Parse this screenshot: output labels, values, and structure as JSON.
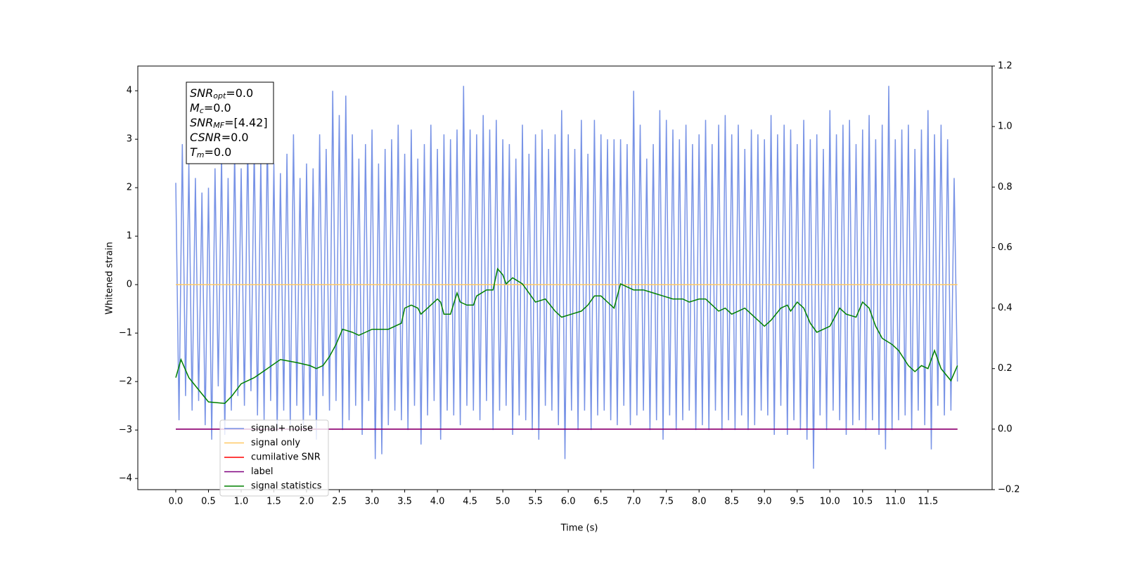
{
  "chart_data": {
    "type": "line",
    "xlabel": "Time (s)",
    "ylabel": "Whitened strain",
    "xlim": [
      -0.58,
      12.48
    ],
    "ylim": [
      -4.23,
      4.51
    ],
    "y2lim": [
      -0.2,
      1.2
    ],
    "xticks": [
      {
        "value": 0,
        "label": "0.0"
      },
      0.5,
      {
        "value": 1,
        "label": "1.0"
      },
      1.5,
      {
        "value": 2,
        "label": "2.0"
      },
      2.5,
      {
        "value": 3,
        "label": "3.0"
      },
      3.5,
      {
        "value": 4,
        "label": "4.0"
      },
      4.5,
      {
        "value": 5,
        "label": "5.0"
      },
      5.5,
      {
        "value": 6,
        "label": "6.0"
      },
      6.5,
      {
        "value": 7,
        "label": "7.0"
      },
      7.5,
      {
        "value": 8,
        "label": "8.0"
      },
      8.5,
      {
        "value": 9,
        "label": "9.0"
      },
      9.5,
      {
        "value": 10,
        "label": "10.0"
      },
      10.5,
      {
        "value": 11,
        "label": "11.0"
      },
      11.5
    ],
    "yticks": [
      {
        "value": -4,
        "label": "−4"
      },
      {
        "value": -3,
        "label": "−3"
      },
      {
        "value": -2,
        "label": "−2"
      },
      {
        "value": -1,
        "label": "−1"
      },
      0,
      1,
      2,
      3,
      4
    ],
    "y2ticks": [
      {
        "value": -0.2,
        "label": "−0.2"
      },
      {
        "value": 0,
        "label": "0.0"
      },
      {
        "value": 0.2,
        "label": "0.2"
      },
      {
        "value": 0.4,
        "label": "0.4"
      },
      {
        "value": 0.6,
        "label": "0.6"
      },
      {
        "value": 0.8,
        "label": "0.8"
      },
      {
        "value": 1,
        "label": "1.0"
      },
      {
        "value": 1.2,
        "label": "1.2"
      }
    ],
    "annotation": [
      {
        "symbol": "SNR",
        "subscript": "opt",
        "text": "=0.0"
      },
      {
        "symbol": "M",
        "subscript": "c",
        "text": "=0.0"
      },
      {
        "symbol": "SNR",
        "subscript": "MF",
        "text": "=[4.42]"
      },
      {
        "symbol": "CSNR",
        "subscript": null,
        "text": "=0.0"
      },
      {
        "symbol": "T",
        "subscript": "m",
        "text": "=0.0"
      }
    ],
    "series": [
      {
        "name": "signal+ noise",
        "color": "#7893e6",
        "axis": "y",
        "x": [
          0,
          0.05,
          0.1,
          0.15,
          0.2,
          0.25,
          0.3,
          0.35,
          0.4,
          0.45,
          0.5,
          0.55,
          0.6,
          0.65,
          0.7,
          0.75,
          0.8,
          0.85,
          0.9,
          0.95,
          1,
          1.05,
          1.1,
          1.15,
          1.2,
          1.25,
          1.3,
          1.35,
          1.4,
          1.45,
          1.5,
          1.55,
          1.6,
          1.65,
          1.7,
          1.75,
          1.8,
          1.85,
          1.9,
          1.95,
          2,
          2.05,
          2.1,
          2.15,
          2.2,
          2.25,
          2.3,
          2.35,
          2.4,
          2.45,
          2.5,
          2.55,
          2.6,
          2.65,
          2.7,
          2.75,
          2.8,
          2.85,
          2.9,
          2.95,
          3,
          3.05,
          3.1,
          3.15,
          3.2,
          3.25,
          3.3,
          3.35,
          3.4,
          3.45,
          3.5,
          3.55,
          3.6,
          3.65,
          3.7,
          3.75,
          3.8,
          3.85,
          3.9,
          3.95,
          4,
          4.05,
          4.1,
          4.15,
          4.2,
          4.25,
          4.3,
          4.35,
          4.4,
          4.45,
          4.5,
          4.55,
          4.6,
          4.65,
          4.7,
          4.75,
          4.8,
          4.85,
          4.9,
          4.95,
          5,
          5.05,
          5.1,
          5.15,
          5.2,
          5.25,
          5.3,
          5.35,
          5.4,
          5.45,
          5.5,
          5.55,
          5.6,
          5.65,
          5.7,
          5.75,
          5.8,
          5.85,
          5.9,
          5.95,
          6,
          6.05,
          6.1,
          6.15,
          6.2,
          6.25,
          6.3,
          6.35,
          6.4,
          6.45,
          6.5,
          6.55,
          6.6,
          6.65,
          6.7,
          6.75,
          6.8,
          6.85,
          6.9,
          6.95,
          7,
          7.05,
          7.1,
          7.15,
          7.2,
          7.25,
          7.3,
          7.35,
          7.4,
          7.45,
          7.5,
          7.55,
          7.6,
          7.65,
          7.7,
          7.75,
          7.8,
          7.85,
          7.9,
          7.95,
          8,
          8.05,
          8.1,
          8.15,
          8.2,
          8.25,
          8.3,
          8.35,
          8.4,
          8.45,
          8.5,
          8.55,
          8.6,
          8.65,
          8.7,
          8.75,
          8.8,
          8.85,
          8.9,
          8.95,
          9,
          9.05,
          9.1,
          9.15,
          9.2,
          9.25,
          9.3,
          9.35,
          9.4,
          9.45,
          9.5,
          9.55,
          9.6,
          9.65,
          9.7,
          9.75,
          9.8,
          9.85,
          9.9,
          9.95,
          10,
          10.05,
          10.1,
          10.15,
          10.2,
          10.25,
          10.3,
          10.35,
          10.4,
          10.45,
          10.5,
          10.55,
          10.6,
          10.65,
          10.7,
          10.75,
          10.8,
          10.85,
          10.9,
          10.95,
          11,
          11.05,
          11.1,
          11.15,
          11.2,
          11.25,
          11.3,
          11.35,
          11.4,
          11.45,
          11.5,
          11.55,
          11.6,
          11.65,
          11.7,
          11.75,
          11.8,
          11.85,
          11.9,
          11.95
        ],
        "values": [
          2.1,
          -2.8,
          2.9,
          -2.3,
          2.5,
          -2.6,
          2.2,
          -2.4,
          1.9,
          -2.9,
          2.0,
          -3.2,
          2.4,
          -2.1,
          2.7,
          -3.1,
          2.2,
          -2.6,
          2.8,
          -2.3,
          2.4,
          -2.5,
          3.0,
          -2.2,
          2.9,
          -2.7,
          2.6,
          -2.8,
          3.1,
          -2.4,
          2.5,
          -3.0,
          2.3,
          -2.6,
          2.7,
          -2.9,
          3.1,
          -2.5,
          2.2,
          -3.0,
          2.5,
          -2.7,
          2.4,
          -3.2,
          3.1,
          -2.3,
          2.8,
          -2.6,
          4.0,
          -2.4,
          3.5,
          -3.0,
          3.9,
          -2.8,
          3.1,
          -2.5,
          2.6,
          -3.1,
          2.9,
          -2.4,
          3.2,
          -3.6,
          2.5,
          -3.5,
          2.8,
          -2.9,
          3.0,
          -2.6,
          3.3,
          -2.8,
          2.7,
          -3.0,
          3.2,
          -2.5,
          2.6,
          -3.3,
          2.9,
          -2.7,
          3.3,
          -2.4,
          2.8,
          -3.2,
          3.1,
          -2.6,
          3.0,
          -2.7,
          3.2,
          -2.9,
          4.1,
          -2.5,
          3.2,
          -2.6,
          3.1,
          -2.8,
          3.5,
          -2.4,
          3.2,
          -3.0,
          3.4,
          -2.6,
          3.0,
          -2.5,
          2.9,
          -3.1,
          2.6,
          -2.7,
          3.3,
          -2.8,
          2.7,
          -3.0,
          3.1,
          -3.2,
          3.2,
          -2.5,
          2.8,
          -2.6,
          3.1,
          -2.9,
          3.6,
          -3.6,
          3.1,
          -2.6,
          2.8,
          -3.0,
          3.4,
          -2.6,
          2.7,
          -3.0,
          3.4,
          -2.7,
          3.1,
          -2.6,
          3.0,
          -2.8,
          3.0,
          -2.9,
          3.0,
          -2.5,
          2.9,
          -2.9,
          4.0,
          -2.7,
          3.3,
          -2.6,
          2.6,
          -3.0,
          2.9,
          -2.8,
          3.6,
          -3.2,
          3.4,
          -2.7,
          3.2,
          -3.0,
          3.0,
          -2.8,
          3.3,
          -2.6,
          2.9,
          -3.0,
          3.1,
          -2.9,
          3.4,
          -3.0,
          2.9,
          -2.6,
          3.3,
          -3.0,
          3.5,
          -2.8,
          3.1,
          -3.0,
          3.3,
          -2.7,
          2.8,
          -3.0,
          3.2,
          -2.9,
          3.1,
          -2.6,
          3.0,
          -2.7,
          3.5,
          -3.1,
          3.1,
          -2.5,
          3.3,
          -3.1,
          3.2,
          -2.8,
          2.9,
          -3.0,
          3.4,
          -3.2,
          3.0,
          -3.8,
          3.1,
          -2.7,
          2.8,
          -3.0,
          3.6,
          -2.6,
          3.1,
          -2.8,
          3.3,
          -3.1,
          3.4,
          -2.9,
          2.9,
          -2.8,
          3.2,
          -3.0,
          3.5,
          -2.8,
          3.0,
          -3.1,
          3.3,
          -3.4,
          4.1,
          -3.0,
          3.0,
          -2.8,
          3.2,
          -2.7,
          3.3,
          -3.0,
          2.8,
          -2.6,
          3.2,
          -2.9,
          3.6,
          -3.4,
          3.1,
          -2.5,
          3.3,
          -2.7,
          3.0,
          -2.6,
          2.2,
          -2.0
        ]
      },
      {
        "name": "signal only",
        "color": "#ffc864",
        "axis": "y",
        "x": [
          0,
          11.95
        ],
        "values": [
          0,
          0
        ]
      },
      {
        "name": "cumilative SNR",
        "color": "#ff0000",
        "axis": "y2",
        "x": [
          0,
          11.95
        ],
        "values": [
          0,
          0
        ]
      },
      {
        "name": "label",
        "color": "#800080",
        "axis": "y2",
        "x": [
          0,
          11.95
        ],
        "values": [
          0,
          0
        ]
      },
      {
        "name": "signal statistics",
        "color": "#008000",
        "axis": "y2",
        "x": [
          0,
          0.08,
          0.2,
          0.35,
          0.5,
          0.75,
          0.86,
          1.0,
          1.2,
          1.4,
          1.6,
          1.85,
          2.05,
          2.15,
          2.25,
          2.35,
          2.45,
          2.55,
          2.7,
          2.8,
          2.9,
          3.0,
          3.25,
          3.45,
          3.5,
          3.6,
          3.7,
          3.75,
          3.85,
          4.0,
          4.05,
          4.1,
          4.2,
          4.3,
          4.35,
          4.45,
          4.55,
          4.6,
          4.75,
          4.85,
          4.92,
          5.0,
          5.05,
          5.15,
          5.3,
          5.5,
          5.65,
          5.8,
          5.9,
          6.05,
          6.2,
          6.3,
          6.4,
          6.5,
          6.6,
          6.7,
          6.8,
          6.9,
          7.0,
          7.15,
          7.3,
          7.45,
          7.6,
          7.75,
          7.85,
          8.0,
          8.1,
          8.3,
          8.4,
          8.5,
          8.6,
          8.7,
          8.8,
          9.0,
          9.1,
          9.25,
          9.35,
          9.4,
          9.5,
          9.6,
          9.7,
          9.8,
          9.9,
          10.0,
          10.15,
          10.25,
          10.4,
          10.5,
          10.6,
          10.7,
          10.8,
          10.95,
          11.05,
          11.2,
          11.3,
          11.4,
          11.5,
          11.6,
          11.7,
          11.85,
          11.95
        ],
        "values": [
          0.17,
          0.23,
          0.17,
          0.13,
          0.09,
          0.085,
          0.11,
          0.15,
          0.17,
          0.2,
          0.23,
          0.22,
          0.21,
          0.2,
          0.21,
          0.24,
          0.28,
          0.33,
          0.32,
          0.31,
          0.32,
          0.33,
          0.33,
          0.35,
          0.4,
          0.41,
          0.4,
          0.38,
          0.4,
          0.43,
          0.42,
          0.38,
          0.38,
          0.45,
          0.42,
          0.41,
          0.41,
          0.44,
          0.46,
          0.46,
          0.53,
          0.51,
          0.48,
          0.5,
          0.48,
          0.42,
          0.43,
          0.39,
          0.37,
          0.38,
          0.39,
          0.41,
          0.44,
          0.44,
          0.42,
          0.4,
          0.48,
          0.47,
          0.46,
          0.46,
          0.45,
          0.44,
          0.43,
          0.43,
          0.42,
          0.43,
          0.43,
          0.39,
          0.4,
          0.38,
          0.39,
          0.4,
          0.38,
          0.34,
          0.36,
          0.4,
          0.41,
          0.39,
          0.42,
          0.4,
          0.35,
          0.32,
          0.33,
          0.34,
          0.4,
          0.38,
          0.37,
          0.42,
          0.4,
          0.34,
          0.3,
          0.28,
          0.26,
          0.21,
          0.19,
          0.21,
          0.2,
          0.26,
          0.2,
          0.16,
          0.21
        ]
      }
    ]
  }
}
